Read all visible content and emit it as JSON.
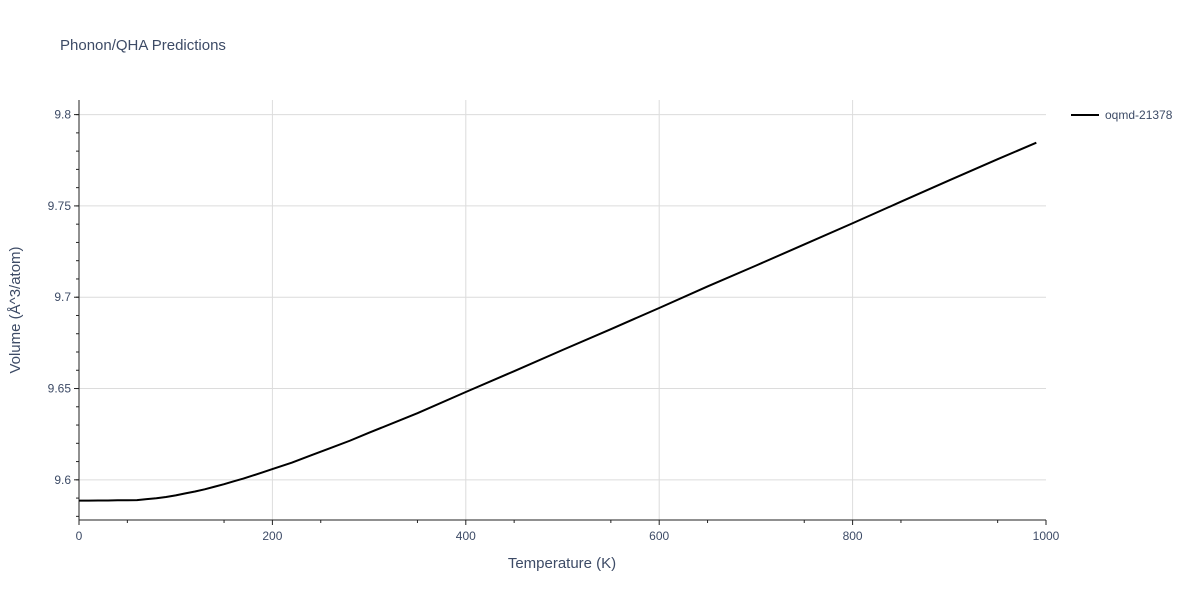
{
  "chart_data": {
    "type": "line",
    "title": "Phonon/QHA Predictions",
    "xlabel": "Temperature (K)",
    "ylabel": "Volume (Å^3/atom)",
    "xlim": [
      0,
      1000
    ],
    "ylim": [
      9.578,
      9.808
    ],
    "xticks": [
      0,
      200,
      400,
      600,
      800,
      1000
    ],
    "xtick_labels": [
      "0",
      "200",
      "400",
      "600",
      "800",
      "1000"
    ],
    "yticks": [
      9.6,
      9.65,
      9.7,
      9.75,
      9.8
    ],
    "ytick_labels": [
      "9.6",
      "9.65",
      "9.7",
      "9.75",
      "9.8"
    ],
    "grid": true,
    "legend_position": "top-right",
    "series": [
      {
        "name": "oqmd-21378",
        "color": "#000000",
        "x": [
          0,
          10,
          20,
          30,
          40,
          50,
          60,
          70,
          80,
          90,
          100,
          110,
          120,
          130,
          140,
          150,
          160,
          170,
          180,
          190,
          200,
          220,
          240,
          260,
          280,
          300,
          350,
          400,
          450,
          500,
          550,
          600,
          650,
          700,
          750,
          800,
          850,
          900,
          950,
          990
        ],
        "y": [
          9.5886,
          9.5886,
          9.5887,
          9.5887,
          9.5888,
          9.5888,
          9.5889,
          9.5894,
          9.5899,
          9.5906,
          9.5915,
          9.5926,
          9.5936,
          9.5948,
          9.5962,
          9.5976,
          9.5992,
          9.6007,
          9.6024,
          9.6041,
          9.6059,
          9.6094,
          9.6134,
          9.6174,
          9.6214,
          9.6258,
          9.6365,
          9.6481,
          9.6595,
          9.6711,
          9.6825,
          9.6941,
          9.7059,
          9.7173,
          9.7289,
          9.7405,
          9.7523,
          9.764,
          9.7756,
          9.7846
        ]
      }
    ]
  }
}
